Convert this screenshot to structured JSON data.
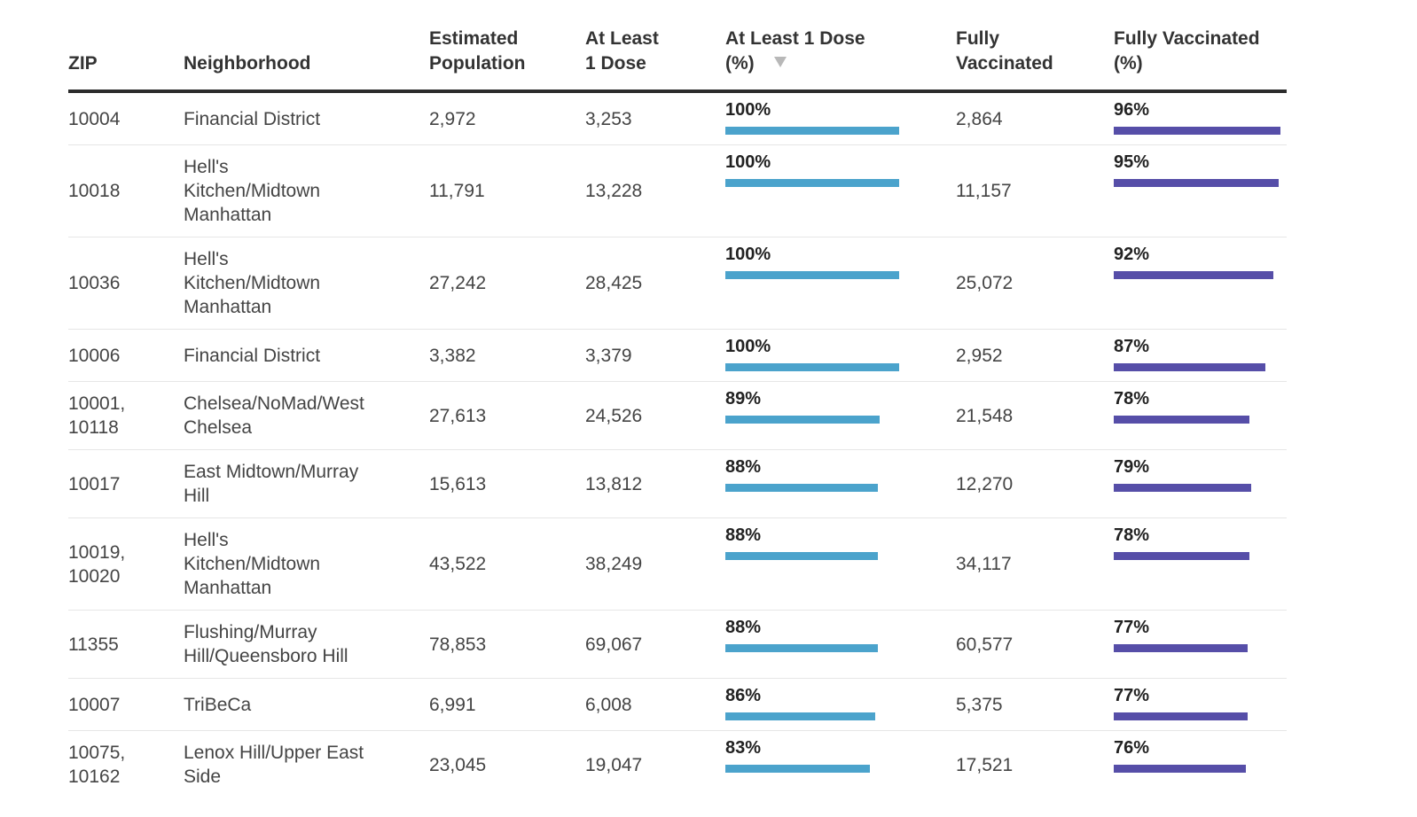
{
  "chart_data": {
    "type": "table",
    "columns": [
      {
        "key": "zip",
        "label_lines": [
          "ZIP"
        ]
      },
      {
        "key": "neighborhood",
        "label_lines": [
          "Neighborhood"
        ]
      },
      {
        "key": "population",
        "label_lines": [
          "Estimated",
          "Population"
        ]
      },
      {
        "key": "at_least_1_dose",
        "label_lines": [
          "At Least",
          "1 Dose"
        ]
      },
      {
        "key": "at_least_1_dose_pct",
        "label_lines": [
          "At Least 1 Dose",
          "(%)"
        ],
        "sorted": "descending"
      },
      {
        "key": "fully_vaccinated",
        "label_lines": [
          "Fully",
          "Vaccinated"
        ]
      },
      {
        "key": "fully_vaccinated_pct",
        "label_lines": [
          "Fully Vaccinated",
          "(%)"
        ]
      }
    ],
    "colors": {
      "dose_bar": "#4ba3cc",
      "fully_bar": "#564ea8"
    },
    "rows": [
      {
        "zip": [
          "10004"
        ],
        "neighborhood": [
          "Financial District"
        ],
        "population": "2,972",
        "at_least_1_dose": "3,253",
        "dose_pct_label": "100%",
        "dose_pct": 100,
        "fully_vaccinated": "2,864",
        "fully_pct_label": "96%",
        "fully_pct": 96
      },
      {
        "zip": [
          "10018"
        ],
        "neighborhood": [
          "Hell's",
          "Kitchen/Midtown",
          "Manhattan"
        ],
        "population": "11,791",
        "at_least_1_dose": "13,228",
        "dose_pct_label": "100%",
        "dose_pct": 100,
        "fully_vaccinated": "11,157",
        "fully_pct_label": "95%",
        "fully_pct": 95
      },
      {
        "zip": [
          "10036"
        ],
        "neighborhood": [
          "Hell's",
          "Kitchen/Midtown",
          "Manhattan"
        ],
        "population": "27,242",
        "at_least_1_dose": "28,425",
        "dose_pct_label": "100%",
        "dose_pct": 100,
        "fully_vaccinated": "25,072",
        "fully_pct_label": "92%",
        "fully_pct": 92
      },
      {
        "zip": [
          "10006"
        ],
        "neighborhood": [
          "Financial District"
        ],
        "population": "3,382",
        "at_least_1_dose": "3,379",
        "dose_pct_label": "100%",
        "dose_pct": 100,
        "fully_vaccinated": "2,952",
        "fully_pct_label": "87%",
        "fully_pct": 87
      },
      {
        "zip": [
          "10001,",
          "10118"
        ],
        "neighborhood": [
          "Chelsea/NoMad/West",
          "Chelsea"
        ],
        "population": "27,613",
        "at_least_1_dose": "24,526",
        "dose_pct_label": "89%",
        "dose_pct": 89,
        "fully_vaccinated": "21,548",
        "fully_pct_label": "78%",
        "fully_pct": 78
      },
      {
        "zip": [
          "10017"
        ],
        "neighborhood": [
          "East Midtown/Murray",
          "Hill"
        ],
        "population": "15,613",
        "at_least_1_dose": "13,812",
        "dose_pct_label": "88%",
        "dose_pct": 88,
        "fully_vaccinated": "12,270",
        "fully_pct_label": "79%",
        "fully_pct": 79
      },
      {
        "zip": [
          "10019,",
          "10020"
        ],
        "neighborhood": [
          "Hell's",
          "Kitchen/Midtown",
          "Manhattan"
        ],
        "population": "43,522",
        "at_least_1_dose": "38,249",
        "dose_pct_label": "88%",
        "dose_pct": 88,
        "fully_vaccinated": "34,117",
        "fully_pct_label": "78%",
        "fully_pct": 78
      },
      {
        "zip": [
          "11355"
        ],
        "neighborhood": [
          "Flushing/Murray",
          "Hill/Queensboro Hill"
        ],
        "population": "78,853",
        "at_least_1_dose": "69,067",
        "dose_pct_label": "88%",
        "dose_pct": 88,
        "fully_vaccinated": "60,577",
        "fully_pct_label": "77%",
        "fully_pct": 77
      },
      {
        "zip": [
          "10007"
        ],
        "neighborhood": [
          "TriBeCa"
        ],
        "population": "6,991",
        "at_least_1_dose": "6,008",
        "dose_pct_label": "86%",
        "dose_pct": 86,
        "fully_vaccinated": "5,375",
        "fully_pct_label": "77%",
        "fully_pct": 77
      },
      {
        "zip": [
          "10075,",
          "10162"
        ],
        "neighborhood": [
          "Lenox Hill/Upper East",
          "Side"
        ],
        "population": "23,045",
        "at_least_1_dose": "19,047",
        "dose_pct_label": "83%",
        "dose_pct": 83,
        "fully_vaccinated": "17,521",
        "fully_pct_label": "76%",
        "fully_pct": 76
      }
    ]
  }
}
